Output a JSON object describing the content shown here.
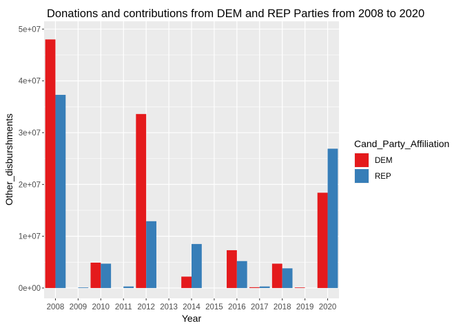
{
  "chart_data": {
    "type": "bar",
    "title": "Donations and contributions from DEM and REP Parties from 2008 to 2020",
    "xlabel": "Year",
    "ylabel": "Other_disburshments",
    "categories": [
      "2008",
      "2009",
      "2010",
      "2011",
      "2012",
      "2013",
      "2014",
      "2015",
      "2016",
      "2017",
      "2018",
      "2019",
      "2020"
    ],
    "y_ticks": [
      {
        "value": 0,
        "label": "0e+00"
      },
      {
        "value": 10000000,
        "label": "1e+07"
      },
      {
        "value": 20000000,
        "label": "2e+07"
      },
      {
        "value": 30000000,
        "label": "3e+07"
      },
      {
        "value": 40000000,
        "label": "4e+07"
      },
      {
        "value": 50000000,
        "label": "5e+07"
      }
    ],
    "ylim": [
      -2000000,
      51500000
    ],
    "grid": true,
    "legend": {
      "title": "Cand_Party_Affiliation",
      "position": "right"
    },
    "series": [
      {
        "name": "DEM",
        "color": "#E41A1C",
        "values": [
          48000000,
          null,
          4900000,
          null,
          33600000,
          null,
          2200000,
          null,
          7300000,
          150000,
          4700000,
          100000,
          18400000
        ]
      },
      {
        "name": "REP",
        "color": "#377EB8",
        "values": [
          37300000,
          100000,
          4700000,
          300000,
          12900000,
          null,
          8500000,
          null,
          5200000,
          300000,
          3800000,
          null,
          26900000
        ]
      }
    ]
  }
}
